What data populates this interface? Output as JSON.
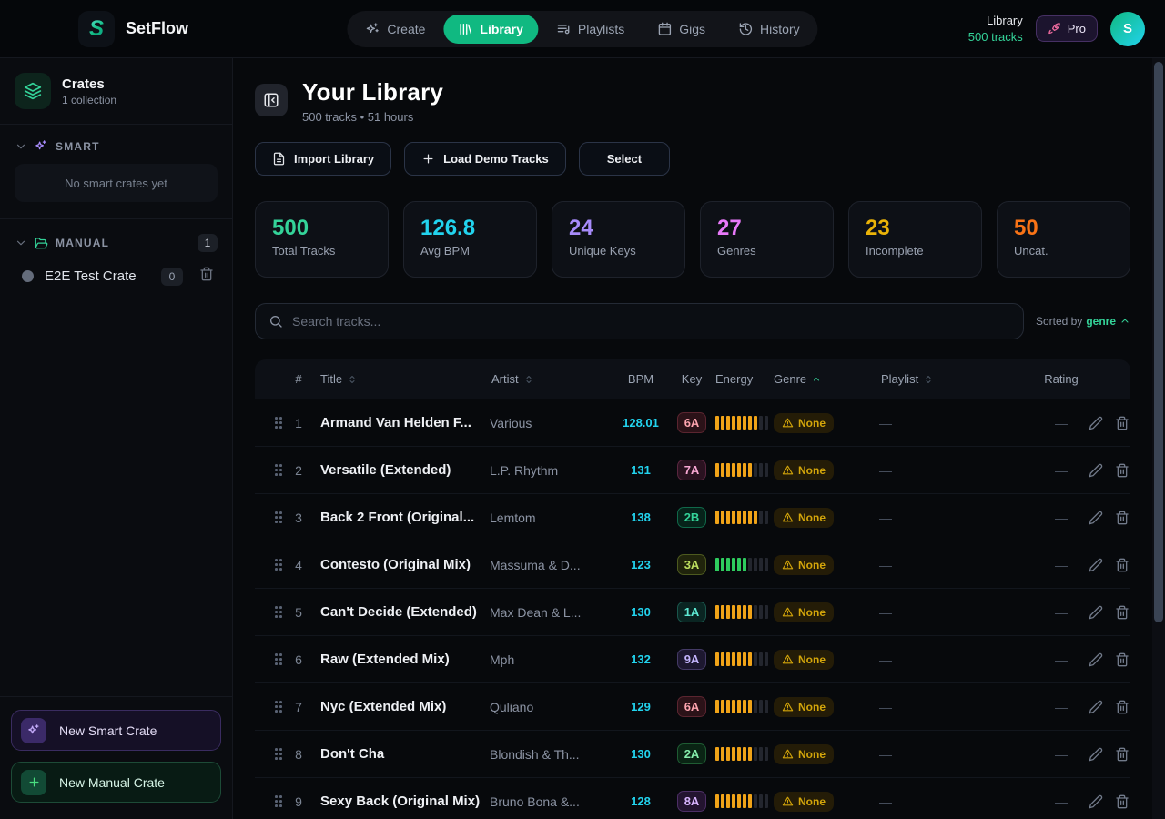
{
  "app": {
    "name": "SetFlow"
  },
  "nav": {
    "items": [
      {
        "label": "Create",
        "icon": "sparkles-icon"
      },
      {
        "label": "Library",
        "icon": "library-icon",
        "active": true
      },
      {
        "label": "Playlists",
        "icon": "playlist-icon"
      },
      {
        "label": "Gigs",
        "icon": "calendar-icon"
      },
      {
        "label": "History",
        "icon": "history-icon"
      }
    ],
    "right": {
      "context_title": "Library",
      "context_sub": "500 tracks",
      "pro_label": "Pro",
      "avatar_initial": "S"
    }
  },
  "sidebar": {
    "header": {
      "title": "Crates",
      "subtitle": "1 collection"
    },
    "smart": {
      "label": "SMART",
      "empty_text": "No smart crates yet"
    },
    "manual": {
      "label": "MANUAL",
      "count": "1",
      "crates": [
        {
          "name": "E2E Test Crate",
          "count": "0"
        }
      ]
    },
    "buttons": {
      "new_smart": "New Smart Crate",
      "new_manual": "New Manual Crate"
    }
  },
  "main": {
    "title": "Your Library",
    "subtitle": "500 tracks • 51 hours",
    "actions": {
      "import": "Import Library",
      "demo": "Load Demo Tracks",
      "select": "Select"
    },
    "stats": [
      {
        "value": "500",
        "label": "Total Tracks",
        "color": "#34d399"
      },
      {
        "value": "126.8",
        "label": "Avg BPM",
        "color": "#22d3ee"
      },
      {
        "value": "24",
        "label": "Unique Keys",
        "color": "#a78bfa"
      },
      {
        "value": "27",
        "label": "Genres",
        "color": "#e879f9"
      },
      {
        "value": "23",
        "label": "Incomplete",
        "color": "#eab308"
      },
      {
        "value": "50",
        "label": "Uncat.",
        "color": "#f97316"
      }
    ],
    "search": {
      "placeholder": "Search tracks..."
    },
    "sort": {
      "prefix": "Sorted by",
      "value": "genre"
    },
    "table": {
      "columns": {
        "num": "#",
        "title": "Title",
        "artist": "Artist",
        "bpm": "BPM",
        "key": "Key",
        "energy": "Energy",
        "genre": "Genre",
        "playlist": "Playlist",
        "rating": "Rating"
      },
      "rows": [
        {
          "num": "1",
          "title": "Armand Van Helden F...",
          "artist": "Various",
          "bpm": "128.01",
          "key": {
            "label": "6A",
            "fg": "#fda4af",
            "bg": "#2b1218",
            "border": "#5b2530"
          },
          "energy": {
            "lit": 8,
            "total": 10,
            "color": "#f0a318"
          },
          "genre": "None",
          "playlist": "—",
          "rating": "—"
        },
        {
          "num": "2",
          "title": "Versatile (Extended)",
          "artist": "L.P. Rhythm",
          "bpm": "131",
          "key": {
            "label": "7A",
            "fg": "#f9a8d4",
            "bg": "#2a1220",
            "border": "#59263f"
          },
          "energy": {
            "lit": 7,
            "total": 10,
            "color": "#f0a318"
          },
          "genre": "None",
          "playlist": "—",
          "rating": "—"
        },
        {
          "num": "3",
          "title": "Back 2 Front (Original...",
          "artist": "Lemtom",
          "bpm": "138",
          "key": {
            "label": "2B",
            "fg": "#34d399",
            "bg": "#06231a",
            "border": "#10694a"
          },
          "energy": {
            "lit": 8,
            "total": 10,
            "color": "#f0a318"
          },
          "genre": "None",
          "playlist": "—",
          "rating": "—"
        },
        {
          "num": "4",
          "title": "Contesto (Original Mix)",
          "artist": "Massuma & D...",
          "bpm": "123",
          "key": {
            "label": "3A",
            "fg": "#bde05f",
            "bg": "#20240c",
            "border": "#4d5a1f"
          },
          "energy": {
            "lit": 6,
            "total": 10,
            "color": "#2ecc5e"
          },
          "genre": "None",
          "playlist": "—",
          "rating": "—"
        },
        {
          "num": "5",
          "title": "Can't Decide (Extended)",
          "artist": "Max Dean & L...",
          "bpm": "130",
          "key": {
            "label": "1A",
            "fg": "#5eead4",
            "bg": "#0a2522",
            "border": "#1a564c"
          },
          "energy": {
            "lit": 7,
            "total": 10,
            "color": "#f0a318"
          },
          "genre": "None",
          "playlist": "—",
          "rating": "—"
        },
        {
          "num": "6",
          "title": "Raw (Extended Mix)",
          "artist": "Mph",
          "bpm": "132",
          "key": {
            "label": "9A",
            "fg": "#c4b5fd",
            "bg": "#1d1830",
            "border": "#443a66"
          },
          "energy": {
            "lit": 7,
            "total": 10,
            "color": "#f0a318"
          },
          "genre": "None",
          "playlist": "—",
          "rating": "—"
        },
        {
          "num": "7",
          "title": "Nyc (Extended Mix)",
          "artist": "Quliano",
          "bpm": "129",
          "key": {
            "label": "6A",
            "fg": "#fda4af",
            "bg": "#2b1218",
            "border": "#5b2530"
          },
          "energy": {
            "lit": 7,
            "total": 10,
            "color": "#f0a318"
          },
          "genre": "None",
          "playlist": "—",
          "rating": "—"
        },
        {
          "num": "8",
          "title": "Don't Cha",
          "artist": "Blondish & Th...",
          "bpm": "130",
          "key": {
            "label": "2A",
            "fg": "#86efac",
            "bg": "#0a2414",
            "border": "#1f5c33"
          },
          "energy": {
            "lit": 7,
            "total": 10,
            "color": "#f0a318"
          },
          "genre": "None",
          "playlist": "—",
          "rating": "—"
        },
        {
          "num": "9",
          "title": "Sexy Back (Original Mix)",
          "artist": "Bruno Bona &...",
          "bpm": "128",
          "key": {
            "label": "8A",
            "fg": "#d8b4fe",
            "bg": "#231430",
            "border": "#4d2f66"
          },
          "energy": {
            "lit": 7,
            "total": 10,
            "color": "#f0a318"
          },
          "genre": "None",
          "playlist": "—",
          "rating": "—"
        }
      ]
    }
  },
  "colors": {
    "accent_green": "#10b981",
    "accent_cyan": "#22d3ee",
    "bpm": "#22d3ee",
    "warning": "#d3a50a",
    "energy_dim": "#23262e"
  },
  "icons": {
    "logo": "setflow-s",
    "create": "sparkles",
    "library": "book-spines",
    "playlists": "list-music",
    "gigs": "calendar",
    "history": "clock-rotate",
    "pro": "rocket",
    "crates": "layers",
    "smart": "sparkles",
    "manual": "folder-open",
    "search": "magnifier",
    "genre_warning": "warning-triangle",
    "row_edit": "pencil",
    "row_delete": "trash"
  }
}
